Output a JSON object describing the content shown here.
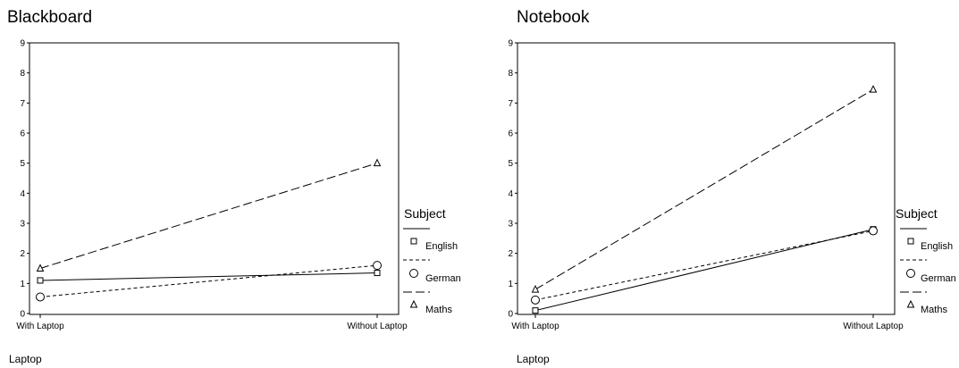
{
  "chart_data": [
    {
      "type": "line",
      "title": "Blackboard",
      "xlabel": "Laptop",
      "ylabel": "",
      "categories": [
        "With Laptop",
        "Without Laptop"
      ],
      "ylim": [
        0,
        9
      ],
      "yticks": [
        0,
        1,
        2,
        3,
        4,
        5,
        6,
        7,
        8,
        9
      ],
      "grid": false,
      "legend": {
        "title": "Subject",
        "placement": "right"
      },
      "series": [
        {
          "name": "English",
          "values": [
            1.1,
            1.35
          ],
          "line": "solid",
          "marker": "square"
        },
        {
          "name": "German",
          "values": [
            0.55,
            1.6
          ],
          "line": "short-dash",
          "marker": "circle"
        },
        {
          "name": "Maths",
          "values": [
            1.5,
            5.0
          ],
          "line": "long-dash",
          "marker": "triangle"
        }
      ]
    },
    {
      "type": "line",
      "title": "Notebook",
      "xlabel": "Laptop",
      "ylabel": "",
      "categories": [
        "With Laptop",
        "Without Laptop"
      ],
      "ylim": [
        0,
        9
      ],
      "yticks": [
        0,
        1,
        2,
        3,
        4,
        5,
        6,
        7,
        8,
        9
      ],
      "grid": false,
      "legend": {
        "title": "Subject",
        "placement": "right"
      },
      "series": [
        {
          "name": "English",
          "values": [
            0.1,
            2.8
          ],
          "line": "solid",
          "marker": "square"
        },
        {
          "name": "German",
          "values": [
            0.45,
            2.75
          ],
          "line": "short-dash",
          "marker": "circle"
        },
        {
          "name": "Maths",
          "values": [
            0.8,
            7.45
          ],
          "line": "long-dash",
          "marker": "triangle"
        }
      ]
    }
  ]
}
